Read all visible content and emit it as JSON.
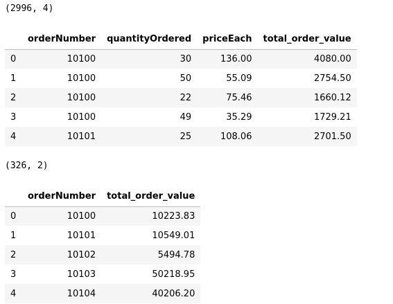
{
  "output1": {
    "shape": "(2996, 4)",
    "columns": [
      "orderNumber",
      "quantityOrdered",
      "priceEach",
      "total_order_value"
    ],
    "rows": [
      {
        "index": "0",
        "cells": [
          "10100",
          "30",
          "136.00",
          "4080.00"
        ]
      },
      {
        "index": "1",
        "cells": [
          "10100",
          "50",
          "55.09",
          "2754.50"
        ]
      },
      {
        "index": "2",
        "cells": [
          "10100",
          "22",
          "75.46",
          "1660.12"
        ]
      },
      {
        "index": "3",
        "cells": [
          "10100",
          "49",
          "35.29",
          "1729.21"
        ]
      },
      {
        "index": "4",
        "cells": [
          "10101",
          "25",
          "108.06",
          "2701.50"
        ]
      }
    ]
  },
  "output2": {
    "shape": "(326, 2)",
    "columns": [
      "orderNumber",
      "total_order_value"
    ],
    "rows": [
      {
        "index": "0",
        "cells": [
          "10100",
          "10223.83"
        ]
      },
      {
        "index": "1",
        "cells": [
          "10101",
          "10549.01"
        ]
      },
      {
        "index": "2",
        "cells": [
          "10102",
          "5494.78"
        ]
      },
      {
        "index": "3",
        "cells": [
          "10103",
          "50218.95"
        ]
      },
      {
        "index": "4",
        "cells": [
          "10104",
          "40206.20"
        ]
      }
    ]
  }
}
